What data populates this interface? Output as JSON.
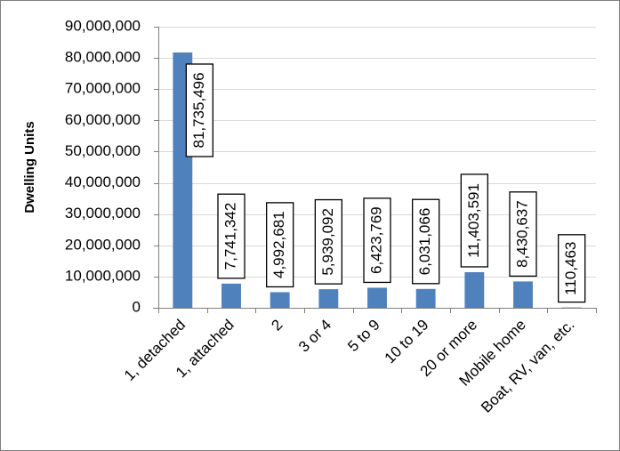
{
  "chart_data": {
    "type": "bar",
    "ylabel": "Dwelling Units",
    "xlabel": "",
    "ylim": [
      0,
      90000000
    ],
    "yticks": [
      0,
      10000000,
      20000000,
      30000000,
      40000000,
      50000000,
      60000000,
      70000000,
      80000000,
      90000000
    ],
    "ytick_labels": [
      "0",
      "10,000,000",
      "20,000,000",
      "30,000,000",
      "40,000,000",
      "50,000,000",
      "60,000,000",
      "70,000,000",
      "80,000,000",
      "90,000,000"
    ],
    "grid": true,
    "legend": false,
    "bar_color": "#4f81bd",
    "categories": [
      "1, detached",
      "1, attached",
      "2",
      "3 or 4",
      "5 to 9",
      "10 to 19",
      "20 or more",
      "Mobile home",
      "Boat, RV, van, etc."
    ],
    "values": [
      81735496,
      7741342,
      4992681,
      5939092,
      6423769,
      6031066,
      11403591,
      8430637,
      110463
    ],
    "data_labels": [
      "81,735,496",
      "7,741,342",
      "4,992,681",
      "5,939,092",
      "6,423,769",
      "6,031,066",
      "11,403,591",
      "8,430,637",
      "110,463"
    ]
  }
}
